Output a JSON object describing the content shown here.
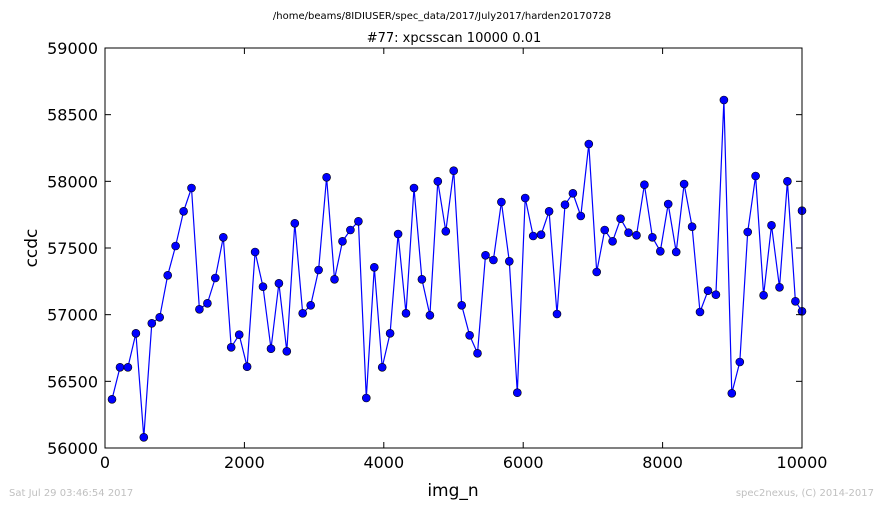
{
  "chart_data": {
    "type": "line",
    "suptitle": "/home/beams/8IDIUSER/spec_data/2017/July2017/harden20170728",
    "title": "#77: xpcsscan 10000 0.01",
    "xlabel": "img_n",
    "ylabel": "ccdc",
    "xlim": [
      0,
      10000
    ],
    "ylim": [
      56000,
      59000
    ],
    "xticks": [
      0,
      2000,
      4000,
      6000,
      8000,
      10000
    ],
    "yticks": [
      56000,
      56500,
      57000,
      57500,
      58000,
      58500,
      59000
    ],
    "xtick_labels": [
      "0",
      "2000",
      "4000",
      "6000",
      "8000",
      "10000"
    ],
    "ytick_labels": [
      "56000",
      "56500",
      "57000",
      "57500",
      "58000",
      "58500",
      "59000"
    ],
    "grid": false,
    "legend": "none",
    "series": [
      {
        "color": "#0000ff",
        "marker": "circle",
        "x": [
          101,
          215,
          329,
          443,
          557,
          671,
          785,
          899,
          1013,
          1127,
          1241,
          1355,
          1469,
          1583,
          1697,
          1811,
          1925,
          2039,
          2153,
          2267,
          2381,
          2495,
          2609,
          2723,
          2837,
          2951,
          3065,
          3179,
          3293,
          3407,
          3521,
          3635,
          3749,
          3863,
          3977,
          4091,
          4205,
          4319,
          4433,
          4547,
          4661,
          4775,
          4889,
          5003,
          5117,
          5231,
          5345,
          5459,
          5573,
          5687,
          5801,
          5915,
          6029,
          6143,
          6257,
          6371,
          6485,
          6599,
          6713,
          6827,
          6941,
          7055,
          7169,
          7283,
          7397,
          7511,
          7625,
          7739,
          7853,
          7967,
          8081,
          8195,
          8309,
          8423,
          8537,
          8651,
          8765,
          8879,
          8993,
          9107,
          9221,
          9335,
          9449,
          9563,
          9677,
          9791,
          9905,
          10000,
          10000
        ],
        "y": [
          56365,
          56605,
          56605,
          56860,
          56080,
          56935,
          56980,
          57295,
          57515,
          57775,
          57950,
          57040,
          57085,
          57275,
          57580,
          56755,
          56850,
          56610,
          57470,
          57210,
          56745,
          57235,
          56725,
          57685,
          57010,
          57070,
          57335,
          58030,
          57265,
          57550,
          57635,
          57700,
          56375,
          57355,
          56605,
          56860,
          57605,
          57010,
          57950,
          57265,
          56995,
          58000,
          57625,
          58080,
          57070,
          56845,
          56710,
          57445,
          57410,
          57845,
          57400,
          56415,
          57875,
          57590,
          57600,
          57775,
          57005,
          57825,
          57910,
          57740,
          58280,
          57320,
          57635,
          57550,
          57720,
          57615,
          57595,
          57975,
          57580,
          57475,
          57830,
          57470,
          57980,
          57660,
          57020,
          57180,
          57150,
          58610,
          56410,
          56645,
          57620,
          58040,
          57145,
          57670,
          57205,
          58000,
          57100,
          57025,
          57780
        ]
      }
    ]
  },
  "footer": {
    "timestamp": "Sat Jul 29 03:46:54 2017",
    "credit": "spec2nexus, (C) 2014-2017"
  }
}
